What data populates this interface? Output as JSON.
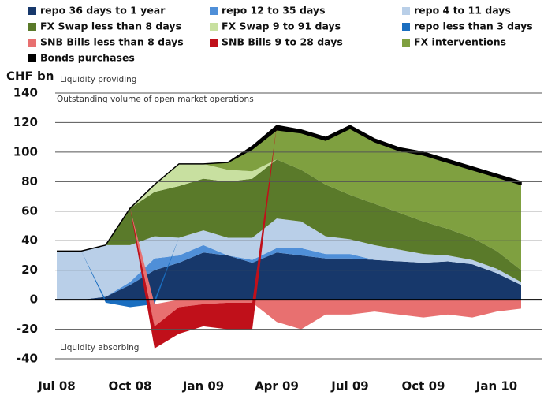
{
  "chart_data": {
    "type": "stacked_area",
    "y_label": "CHF bn",
    "annotations": [
      "Liquidity providing",
      "Outstanding volume of open market operations",
      "Liquidity absorbing"
    ],
    "categories": [
      "Jul 08",
      null,
      null,
      "Oct 08",
      null,
      null,
      "Jan 09",
      null,
      null,
      "Apr 09",
      null,
      null,
      "Jul 09",
      null,
      null,
      "Oct 09",
      null,
      null,
      "Jan 10",
      null
    ],
    "series": [
      {
        "name": "repo 36 days to  1 year",
        "color": "#17386b",
        "values": [
          0,
          0,
          2,
          10,
          20,
          25,
          32,
          30,
          25,
          32,
          30,
          28,
          28,
          27,
          26,
          25,
          26,
          24,
          18,
          10
        ]
      },
      {
        "name": "repo 12 to 35 days",
        "color": "#4f8fd8",
        "values": [
          0,
          0,
          0,
          2,
          8,
          5,
          5,
          0,
          2,
          3,
          5,
          3,
          3,
          0,
          0,
          0,
          0,
          0,
          0,
          0
        ]
      },
      {
        "name": "repo 4 to 11 days",
        "color": "#b9cfe8",
        "values": [
          33,
          33,
          35,
          25,
          15,
          12,
          10,
          12,
          15,
          20,
          18,
          12,
          10,
          10,
          8,
          6,
          4,
          3,
          3,
          2
        ]
      },
      {
        "name": "FX Swap less than  8 days",
        "color": "#5a7a2a",
        "values": [
          0,
          0,
          0,
          25,
          30,
          35,
          35,
          38,
          40,
          40,
          35,
          35,
          30,
          28,
          25,
          22,
          18,
          15,
          12,
          8
        ]
      },
      {
        "name": "FX Swap 9 to 91 days",
        "color": "#c8e0a0",
        "values": [
          0,
          0,
          0,
          0,
          5,
          15,
          10,
          8,
          5,
          0,
          0,
          0,
          0,
          0,
          0,
          0,
          0,
          0,
          0,
          0
        ]
      },
      {
        "name": "repo less than 3 days",
        "color": "#1a6ec0",
        "values": [
          0,
          0,
          -2,
          -5,
          -3,
          0,
          0,
          0,
          0,
          0,
          0,
          0,
          0,
          0,
          0,
          0,
          0,
          0,
          0,
          0
        ]
      },
      {
        "name": "SNB Bills less than 8 days",
        "color": "#e87070",
        "values": [
          0,
          0,
          0,
          0,
          -15,
          -5,
          -3,
          -2,
          -2,
          -15,
          -20,
          -10,
          -10,
          -8,
          -10,
          -12,
          -10,
          -12,
          -8,
          -6
        ]
      },
      {
        "name": "SNB Bills 9 to 28 days",
        "color": "#c0101a",
        "values": [
          0,
          0,
          0,
          0,
          -15,
          -18,
          -15,
          -18,
          -18,
          0,
          0,
          0,
          0,
          0,
          0,
          0,
          0,
          0,
          0,
          0
        ]
      },
      {
        "name": "FX interventions",
        "color": "#7fa040",
        "values": [
          0,
          0,
          0,
          0,
          0,
          0,
          0,
          5,
          15,
          20,
          25,
          30,
          45,
          42,
          42,
          45,
          45,
          46,
          50,
          58
        ]
      },
      {
        "name": "Bonds purchases",
        "color": "#000000",
        "values": [
          0,
          0,
          0,
          0,
          0,
          0,
          0,
          0,
          2,
          3,
          2,
          2,
          2,
          2,
          2,
          2,
          2,
          2,
          2,
          2
        ]
      }
    ],
    "ylim": [
      -48,
      148
    ],
    "yticks": [
      -40,
      -20,
      0,
      20,
      40,
      60,
      80,
      100,
      120,
      140
    ],
    "grid": true
  }
}
